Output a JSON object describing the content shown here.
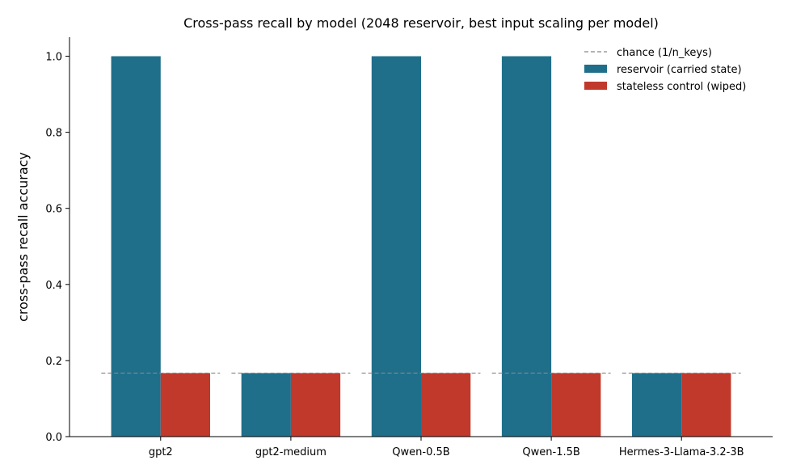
{
  "chart_data": {
    "type": "bar",
    "title": "Cross-pass recall by model (2048 reservoir, best input scaling per model)",
    "xlabel": "",
    "ylabel": "cross-pass recall accuracy",
    "categories": [
      "gpt2",
      "gpt2-medium",
      "Qwen-0.5B",
      "Qwen-1.5B",
      "Hermes-3-Llama-3.2-3B"
    ],
    "series": [
      {
        "name": "reservoir (carried state)",
        "color": "#1f6f8b",
        "values": [
          1.0,
          0.167,
          1.0,
          1.0,
          0.167
        ]
      },
      {
        "name": "stateless control (wiped)",
        "color": "#c0392b",
        "values": [
          0.167,
          0.167,
          0.167,
          0.167,
          0.167
        ]
      }
    ],
    "reference_line": {
      "name": "chance (1/n_keys)",
      "value": 0.167,
      "style": "dashed",
      "color": "#888888"
    },
    "ylim": [
      0,
      1.05
    ],
    "yticks": [
      "0.0",
      "0.2",
      "0.4",
      "0.6",
      "0.8",
      "1.0"
    ],
    "grid": false,
    "legend_position": "top-right"
  }
}
